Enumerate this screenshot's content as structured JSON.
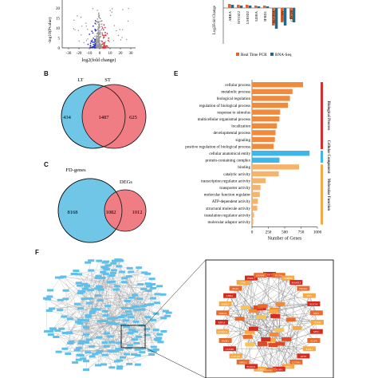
{
  "panels": {
    "b": "B",
    "c": "C",
    "e": "E",
    "f": "F"
  },
  "volcano": {
    "ylabel": "-log10(Pvalue)",
    "xlabel": "log2(fold change)",
    "xticks": [
      "-30",
      "-20",
      "-10",
      "0",
      "10",
      "20",
      "30"
    ],
    "yticks": [
      "20",
      "15",
      "10",
      "5",
      "0"
    ]
  },
  "validation_bar": {
    "ylabel": "Log2Fold Change",
    "genes": [
      "ABRA",
      "MYOZ2",
      "LMOD2",
      "LDHA",
      "IFRD1",
      "SLC25A",
      "CCNY",
      "CDC20"
    ],
    "legend": [
      "Real Time PCR",
      "RNA-Seq"
    ],
    "colors": {
      "qpcr": "#e2632f",
      "rnaseq": "#1f6a8a"
    }
  },
  "venn_b": {
    "label_left": "LT",
    "label_right": "ST",
    "left_only": "434",
    "overlap": "1487",
    "right_only": "625",
    "colors": {
      "left": "#6fc6e7",
      "right": "#f07c84",
      "overlap": "#f1807d"
    }
  },
  "venn_c": {
    "label_left": "FD-genes",
    "label_right": "DEGs",
    "left_only": "8168",
    "overlap": "1082",
    "right_only": "1012"
  },
  "chart_data": {
    "type": "bar",
    "orientation": "horizontal",
    "xlabel": "Number of Genes",
    "xticks": [
      "0",
      "250",
      "500",
      "750",
      "1000"
    ],
    "xlim": [
      0,
      1000
    ],
    "categories": [
      "cellular process",
      "metabolic process",
      "biological regulation",
      "regulation of biological process",
      "response to stimulus",
      "multicellular organismal process",
      "localization",
      "developmental process",
      "signaling",
      "positive regulation of biological process",
      "cellular anatomical entity",
      "protein-containing complex",
      "binding",
      "catalytic activity",
      "transcription regulator activity",
      "transporter activity",
      "molecular function regulator",
      "ATP-dependent activity",
      "structural molecule activity",
      "translation regulator activity",
      "molecular adaptor activity"
    ],
    "values": [
      780,
      620,
      580,
      550,
      430,
      420,
      380,
      360,
      350,
      330,
      880,
      420,
      720,
      410,
      210,
      130,
      120,
      90,
      80,
      30,
      20
    ],
    "groups": [
      {
        "name": "Biological Process",
        "start": 0,
        "end": 9,
        "color": "#f08a3c",
        "band": "#d62f2f"
      },
      {
        "name": "Cellular Component",
        "start": 10,
        "end": 11,
        "color": "#3fb5e8",
        "band": "#3fb5e8"
      },
      {
        "name": "Molecular Function",
        "start": 12,
        "end": 20,
        "color": "#f7b36b",
        "band": "#f5a84a"
      }
    ]
  },
  "network": {
    "hub_genes": [
      "DDIT4",
      "PCNA",
      "CEBPD",
      "MAPK3",
      "NR4A1",
      "FOS",
      "SOCS3",
      "IRF1",
      "JUNB",
      "MYC",
      "KLF4",
      "EGR1",
      "ATF3",
      "CCND1",
      "HSPA1",
      "DUSP1",
      "IER2",
      "TXNIP",
      "FOXO1",
      "NFIL3",
      "CDC20",
      "CCNB1",
      "BUB1",
      "AURKA",
      "KIF11",
      "TOP2A",
      "MKI67",
      "CDK1",
      "PLK1",
      "TTK",
      "ESPL1",
      "CENPF"
    ]
  }
}
